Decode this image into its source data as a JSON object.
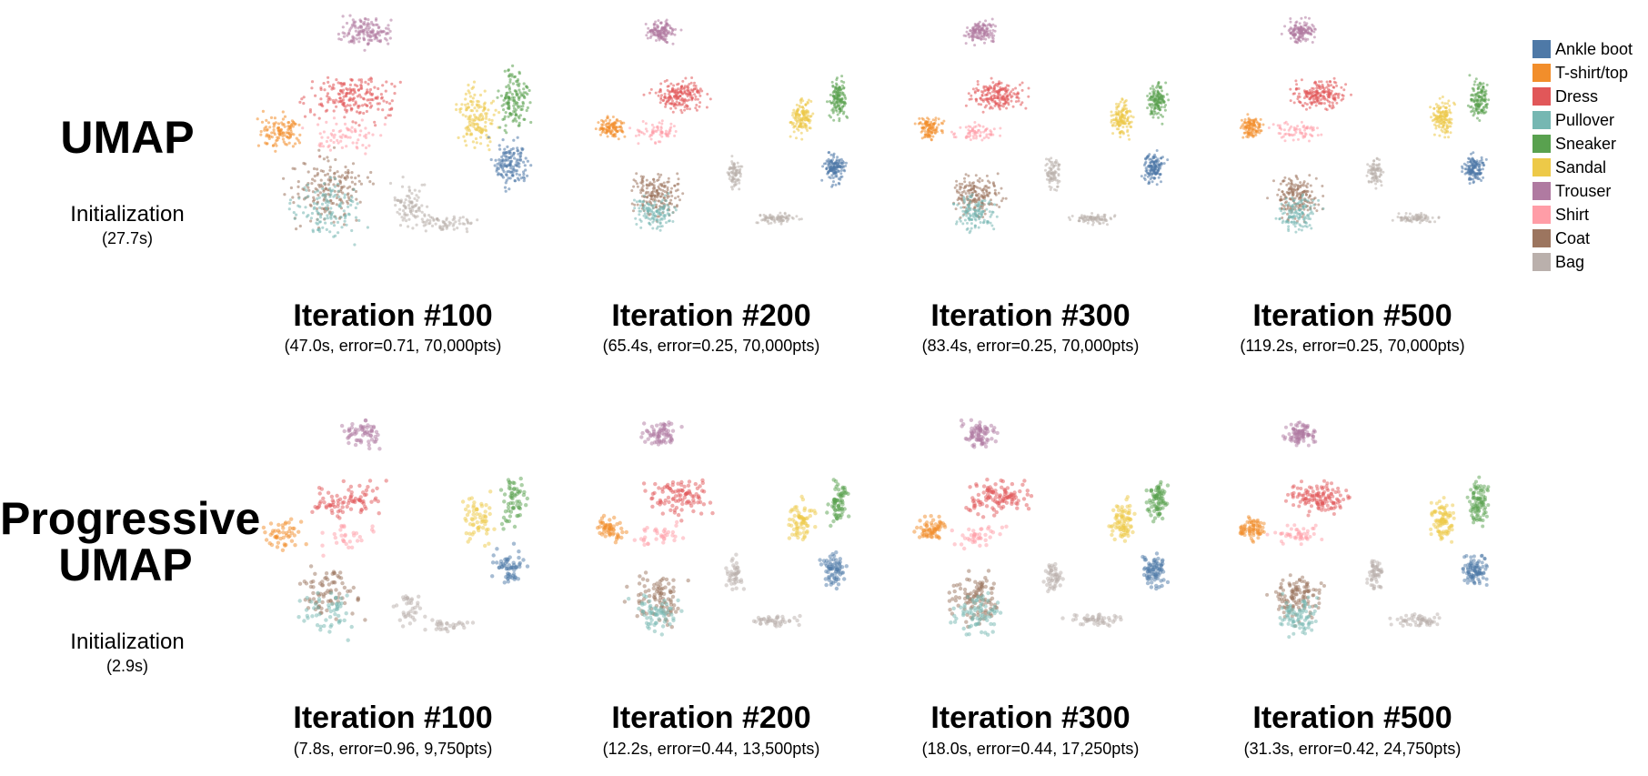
{
  "rows": [
    {
      "title_line1": "UMAP",
      "title_line2": "",
      "init_label": "Initialization",
      "init_time": "(27.7s)"
    },
    {
      "title_line1": "Progressive",
      "title_line2": "UMAP",
      "init_label": "Initialization",
      "init_time": "(2.9s)"
    }
  ],
  "categories": [
    "Ankle boot",
    "T-shirt/top",
    "Dress",
    "Pullover",
    "Sneaker",
    "Sandal",
    "Trouser",
    "Shirt",
    "Coat",
    "Bag"
  ],
  "colors": {
    "Ankle boot": "#4e79a7",
    "T-shirt/top": "#f28e2b",
    "Dress": "#e15759",
    "Pullover": "#76b7b2",
    "Sneaker": "#59a14f",
    "Sandal": "#edc948",
    "Trouser": "#b07aa1",
    "Shirt": "#ff9da7",
    "Coat": "#9c755f",
    "Bag": "#bab0ac"
  },
  "chart_data": [
    {
      "type": "scatter",
      "row": "UMAP",
      "title": "Iteration #100",
      "subtitle": "(47.0s, error=0.71, 70,000pts)",
      "seconds": 47.0,
      "error": 0.71,
      "points": 70000
    },
    {
      "type": "scatter",
      "row": "UMAP",
      "title": "Iteration #200",
      "subtitle": "(65.4s, error=0.25, 70,000pts)",
      "seconds": 65.4,
      "error": 0.25,
      "points": 70000
    },
    {
      "type": "scatter",
      "row": "UMAP",
      "title": "Iteration #300",
      "subtitle": "(83.4s, error=0.25, 70,000pts)",
      "seconds": 83.4,
      "error": 0.25,
      "points": 70000
    },
    {
      "type": "scatter",
      "row": "UMAP",
      "title": "Iteration #500",
      "subtitle": "(119.2s, error=0.25, 70,000pts)",
      "seconds": 119.2,
      "error": 0.25,
      "points": 70000
    },
    {
      "type": "scatter",
      "row": "Progressive UMAP",
      "title": "Iteration #100",
      "subtitle": "(7.8s, error=0.96, 9,750pts)",
      "seconds": 7.8,
      "error": 0.96,
      "points": 9750
    },
    {
      "type": "scatter",
      "row": "Progressive UMAP",
      "title": "Iteration #200",
      "subtitle": "(12.2s, error=0.44, 13,500pts)",
      "seconds": 12.2,
      "error": 0.44,
      "points": 13500
    },
    {
      "type": "scatter",
      "row": "Progressive UMAP",
      "title": "Iteration #300",
      "subtitle": "(18.0s, error=0.44, 17,250pts)",
      "seconds": 18.0,
      "error": 0.44,
      "points": 17250
    },
    {
      "type": "scatter",
      "row": "Progressive UMAP",
      "title": "Iteration #500",
      "subtitle": "(31.3s, error=0.42, 24,750pts)",
      "seconds": 31.3,
      "error": 0.42,
      "points": 24750
    }
  ]
}
